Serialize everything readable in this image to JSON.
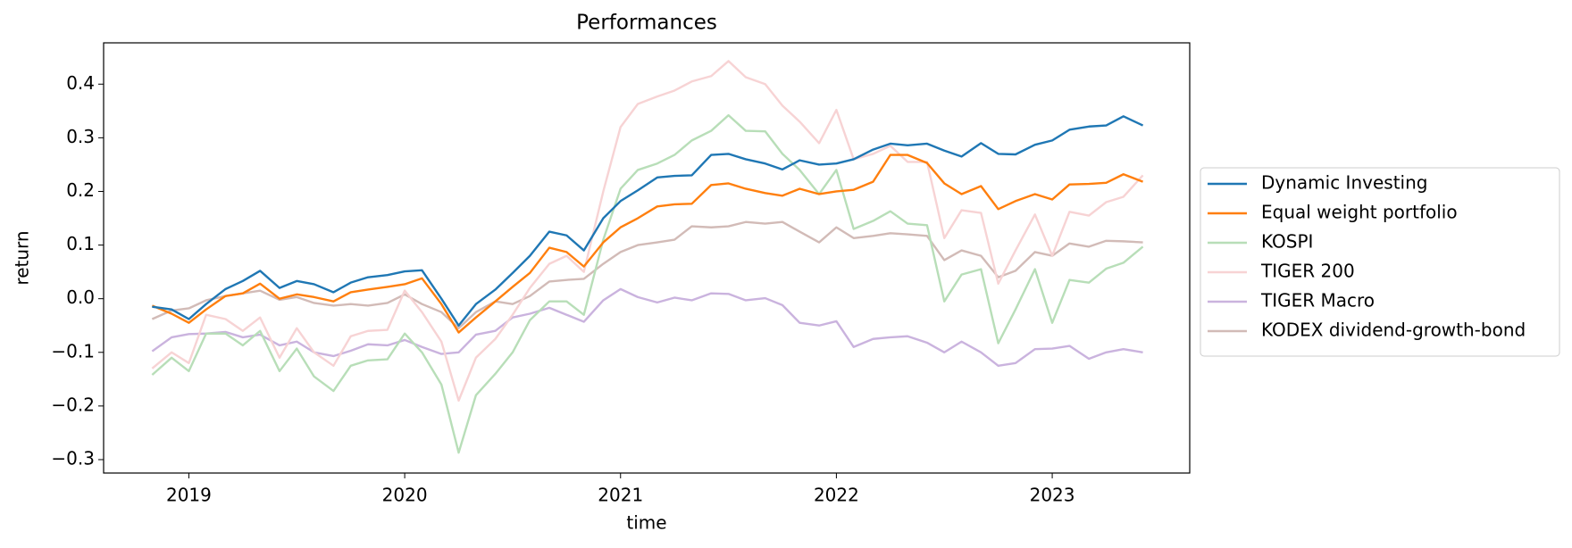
{
  "chart_data": {
    "type": "line",
    "title": "Performances",
    "x_label": "time",
    "y_label": "return",
    "x": [
      2018.83,
      2018.92,
      2019.0,
      2019.08,
      2019.17,
      2019.25,
      2019.33,
      2019.42,
      2019.5,
      2019.58,
      2019.67,
      2019.75,
      2019.83,
      2019.92,
      2020.0,
      2020.08,
      2020.17,
      2020.25,
      2020.33,
      2020.42,
      2020.5,
      2020.58,
      2020.67,
      2020.75,
      2020.83,
      2020.92,
      2021.0,
      2021.08,
      2021.17,
      2021.25,
      2021.33,
      2021.42,
      2021.5,
      2021.58,
      2021.67,
      2021.75,
      2021.83,
      2021.92,
      2022.0,
      2022.08,
      2022.17,
      2022.25,
      2022.33,
      2022.42,
      2022.5,
      2022.58,
      2022.67,
      2022.75,
      2022.83,
      2022.92,
      2023.0,
      2023.08,
      2023.17,
      2023.25,
      2023.33,
      2023.42
    ],
    "series": [
      {
        "name": "Dynamic Investing",
        "color": "#1f77b4",
        "values": [
          -0.015,
          -0.02,
          -0.038,
          -0.01,
          0.018,
          0.033,
          0.052,
          0.02,
          0.033,
          0.027,
          0.012,
          0.03,
          0.04,
          0.044,
          0.051,
          0.053,
          0.0,
          -0.05,
          -0.01,
          0.017,
          0.048,
          0.08,
          0.125,
          0.118,
          0.09,
          0.15,
          0.182,
          0.202,
          0.226,
          0.229,
          0.23,
          0.268,
          0.27,
          0.26,
          0.252,
          0.241,
          0.258,
          0.25,
          0.252,
          0.26,
          0.278,
          0.289,
          0.286,
          0.289,
          0.276,
          0.265,
          0.29,
          0.27,
          0.269,
          0.287,
          0.295,
          0.315,
          0.321,
          0.323,
          0.34,
          0.323
        ]
      },
      {
        "name": "Equal weight portfolio",
        "color": "#ff7f0e",
        "values": [
          -0.013,
          -0.028,
          -0.045,
          -0.02,
          0.005,
          0.01,
          0.028,
          0.0,
          0.008,
          0.003,
          -0.005,
          0.012,
          0.017,
          0.022,
          0.027,
          0.038,
          -0.01,
          -0.063,
          -0.035,
          -0.005,
          0.022,
          0.048,
          0.095,
          0.087,
          0.06,
          0.105,
          0.133,
          0.15,
          0.172,
          0.176,
          0.177,
          0.212,
          0.215,
          0.205,
          0.197,
          0.192,
          0.205,
          0.195,
          0.2,
          0.203,
          0.218,
          0.268,
          0.268,
          0.253,
          0.215,
          0.195,
          0.21,
          0.167,
          0.182,
          0.195,
          0.185,
          0.213,
          0.214,
          0.216,
          0.232,
          0.218
        ]
      },
      {
        "name": "KOSPI",
        "color": "#b8deb8",
        "values": [
          -0.142,
          -0.11,
          -0.135,
          -0.065,
          -0.065,
          -0.087,
          -0.06,
          -0.135,
          -0.093,
          -0.145,
          -0.172,
          -0.125,
          -0.115,
          -0.113,
          -0.065,
          -0.1,
          -0.16,
          -0.287,
          -0.18,
          -0.14,
          -0.1,
          -0.04,
          -0.005,
          -0.005,
          -0.03,
          0.11,
          0.205,
          0.24,
          0.252,
          0.268,
          0.295,
          0.313,
          0.342,
          0.313,
          0.312,
          0.27,
          0.24,
          0.195,
          0.24,
          0.13,
          0.145,
          0.163,
          0.14,
          0.137,
          -0.005,
          0.045,
          0.055,
          -0.083,
          -0.02,
          0.055,
          -0.045,
          0.035,
          0.03,
          0.056,
          0.067,
          0.097
        ]
      },
      {
        "name": "TIGER 200",
        "color": "#f7d3d4",
        "values": [
          -0.13,
          -0.1,
          -0.12,
          -0.03,
          -0.038,
          -0.06,
          -0.035,
          -0.11,
          -0.055,
          -0.1,
          -0.125,
          -0.07,
          -0.06,
          -0.058,
          0.015,
          -0.025,
          -0.08,
          -0.19,
          -0.11,
          -0.075,
          -0.03,
          0.02,
          0.065,
          0.08,
          0.05,
          0.2,
          0.32,
          0.363,
          0.377,
          0.388,
          0.405,
          0.415,
          0.443,
          0.413,
          0.4,
          0.36,
          0.33,
          0.29,
          0.352,
          0.26,
          0.27,
          0.285,
          0.255,
          0.255,
          0.113,
          0.165,
          0.16,
          0.028,
          0.09,
          0.157,
          0.08,
          0.162,
          0.155,
          0.18,
          0.19,
          0.23
        ]
      },
      {
        "name": "TIGER Macro",
        "color": "#cab3de",
        "values": [
          -0.098,
          -0.072,
          -0.066,
          -0.065,
          -0.062,
          -0.072,
          -0.067,
          -0.087,
          -0.08,
          -0.1,
          -0.107,
          -0.097,
          -0.085,
          -0.087,
          -0.077,
          -0.09,
          -0.103,
          -0.1,
          -0.067,
          -0.06,
          -0.035,
          -0.028,
          -0.017,
          -0.03,
          -0.043,
          -0.003,
          0.018,
          0.003,
          -0.007,
          0.002,
          -0.003,
          0.01,
          0.009,
          -0.003,
          0.001,
          -0.012,
          -0.045,
          -0.05,
          -0.042,
          -0.09,
          -0.075,
          -0.072,
          -0.07,
          -0.082,
          -0.1,
          -0.08,
          -0.1,
          -0.125,
          -0.12,
          -0.094,
          -0.093,
          -0.088,
          -0.112,
          -0.1,
          -0.094,
          -0.1
        ]
      },
      {
        "name": "KODEX dividend-growth-bond",
        "color": "#d2bbb7",
        "values": [
          -0.038,
          -0.022,
          -0.018,
          -0.003,
          0.005,
          0.01,
          0.015,
          -0.002,
          0.003,
          -0.008,
          -0.013,
          -0.01,
          -0.013,
          -0.008,
          0.008,
          -0.01,
          -0.025,
          -0.055,
          -0.025,
          -0.005,
          -0.01,
          0.005,
          0.032,
          0.035,
          0.037,
          0.065,
          0.087,
          0.1,
          0.105,
          0.11,
          0.135,
          0.133,
          0.135,
          0.143,
          0.14,
          0.143,
          0.125,
          0.105,
          0.133,
          0.113,
          0.117,
          0.122,
          0.12,
          0.117,
          0.072,
          0.09,
          0.08,
          0.04,
          0.052,
          0.087,
          0.08,
          0.103,
          0.097,
          0.108,
          0.107,
          0.105
        ]
      }
    ],
    "xlim": [
      2018.605,
      2023.637
    ],
    "xticks": [
      2019,
      2020,
      2021,
      2022,
      2023
    ],
    "ylim": [
      -0.325,
      0.477
    ],
    "yticks": [
      {
        "value": 0.4,
        "label": "0.4"
      },
      {
        "value": 0.3,
        "label": "0.3"
      },
      {
        "value": 0.2,
        "label": "0.2"
      },
      {
        "value": 0.1,
        "label": "0.1"
      },
      {
        "value": 0,
        "label": "0.0"
      },
      {
        "value": -0.1,
        "label": "−0.1"
      },
      {
        "value": -0.2,
        "label": "−0.2"
      },
      {
        "value": -0.3,
        "label": "−0.3"
      }
    ],
    "legend": "outside right"
  }
}
